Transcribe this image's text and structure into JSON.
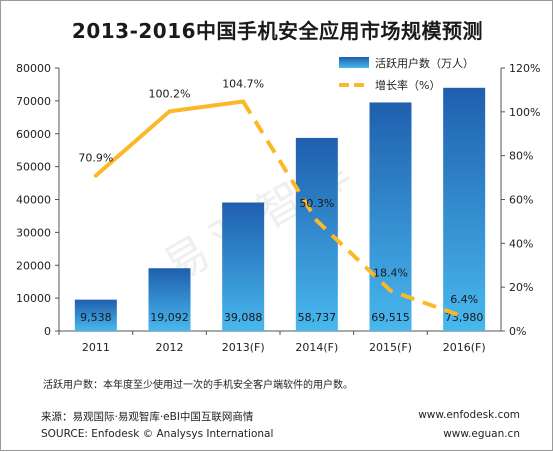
{
  "title": "2013-2016中国手机安全应用市场规模预测",
  "watermark": "易观智库",
  "footnote": "活跃用户数：本年度至少使用过一次的手机安全客户端软件的用户数。",
  "source_cn": "来源：易观国际·易观智库·eBI中国互联网商情",
  "source_en": "SOURCE: Enfodesk © Analysys International",
  "url_1": "www.enfodesk.com",
  "url_2": "www.eguan.cn",
  "chart_data": {
    "type": "bar+line",
    "categories": [
      "2011",
      "2012",
      "2013(F)",
      "2014(F)",
      "2015(F)",
      "2016(F)"
    ],
    "series": [
      {
        "name": "活跃用户数（万人）",
        "type": "bar",
        "axis": "left",
        "values": [
          9538,
          19092,
          39088,
          58737,
          69515,
          73980
        ],
        "labels": [
          "9,538",
          "19,092",
          "39,088",
          "58,737",
          "69,515",
          "73,980"
        ]
      },
      {
        "name": "增长率（%）",
        "type": "line",
        "axis": "right",
        "values": [
          70.9,
          100.2,
          104.7,
          50.3,
          18.4,
          6.4
        ],
        "labels": [
          "70.9%",
          "100.2%",
          "104.7%",
          "50.3%",
          "18.4%",
          "6.4%"
        ],
        "solid_points": 3
      }
    ],
    "left_axis": {
      "min": 0,
      "max": 80000,
      "step": 10000
    },
    "right_axis": {
      "min": 0,
      "max": 120,
      "step": 20,
      "suffix": "%"
    },
    "grid": false,
    "legend_position": "top-right",
    "colors": {
      "bar_top": "#1f5fae",
      "bar_bottom": "#48b8ee",
      "line": "#fbb829"
    }
  }
}
